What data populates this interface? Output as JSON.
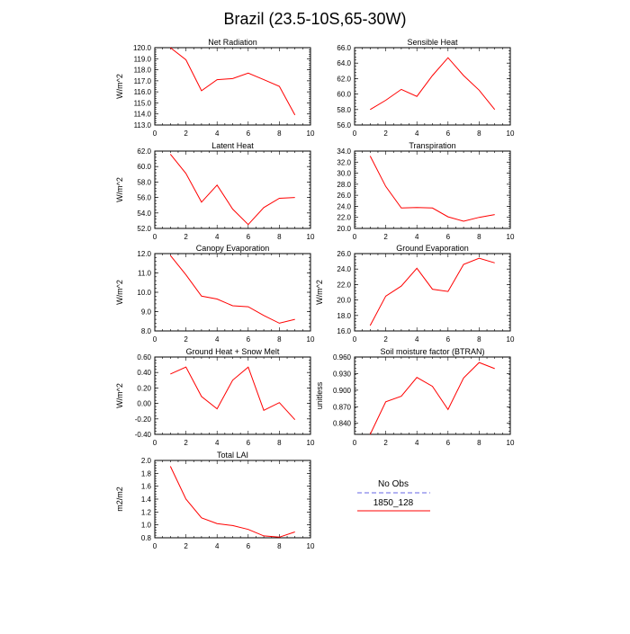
{
  "title": "Brazil (23.5-10S,65-30W)",
  "line_color": "#ff0000",
  "obs_color": "#9999ee",
  "legend": {
    "obs_label": "No Obs",
    "model_label": "1850_128"
  },
  "chart_data": [
    {
      "type": "line",
      "title": "Net Radiation",
      "ylabel": "W/m^2",
      "xlim": [
        0,
        10
      ],
      "ylim": [
        113,
        120
      ],
      "xticks": [
        "0",
        "2",
        "4",
        "6",
        "8",
        "10"
      ],
      "yticks": [
        "113.0",
        "114.0",
        "115.0",
        "116.0",
        "117.0",
        "118.0",
        "119.0",
        "120.0"
      ],
      "x": [
        1,
        2,
        3,
        4,
        5,
        6,
        7,
        8,
        9
      ],
      "series": [
        {
          "name": "1850_128",
          "values": [
            120.0,
            118.9,
            116.1,
            117.1,
            117.2,
            117.7,
            117.1,
            116.5,
            113.9
          ]
        }
      ]
    },
    {
      "type": "line",
      "title": "Sensible Heat",
      "ylabel": "",
      "xlim": [
        0,
        10
      ],
      "ylim": [
        56,
        66
      ],
      "xticks": [
        "0",
        "2",
        "4",
        "6",
        "8",
        "10"
      ],
      "yticks": [
        "56.0",
        "58.0",
        "60.0",
        "62.0",
        "64.0",
        "66.0"
      ],
      "x": [
        1,
        2,
        3,
        4,
        5,
        6,
        7,
        8,
        9
      ],
      "series": [
        {
          "name": "1850_128",
          "values": [
            58.0,
            59.2,
            60.6,
            59.7,
            62.4,
            64.7,
            62.4,
            60.5,
            58.0
          ]
        }
      ]
    },
    {
      "type": "line",
      "title": "Latent Heat",
      "ylabel": "W/m^2",
      "xlim": [
        0,
        10
      ],
      "ylim": [
        52,
        62
      ],
      "xticks": [
        "0",
        "2",
        "4",
        "6",
        "8",
        "10"
      ],
      "yticks": [
        "52.0",
        "54.0",
        "56.0",
        "58.0",
        "60.0",
        "62.0"
      ],
      "x": [
        1,
        2,
        3,
        4,
        5,
        6,
        7,
        8,
        9
      ],
      "series": [
        {
          "name": "1850_128",
          "values": [
            61.6,
            59.1,
            55.4,
            57.6,
            54.5,
            52.5,
            54.7,
            55.9,
            56.0
          ]
        }
      ]
    },
    {
      "type": "line",
      "title": "Transpiration",
      "ylabel": "",
      "xlim": [
        0,
        10
      ],
      "ylim": [
        20,
        34
      ],
      "xticks": [
        "0",
        "2",
        "4",
        "6",
        "8",
        "10"
      ],
      "yticks": [
        "20.0",
        "22.0",
        "24.0",
        "26.0",
        "28.0",
        "30.0",
        "32.0",
        "34.0"
      ],
      "x": [
        1,
        2,
        3,
        4,
        5,
        6,
        7,
        8,
        9
      ],
      "series": [
        {
          "name": "1850_128",
          "values": [
            33.1,
            27.6,
            23.7,
            23.8,
            23.7,
            22.1,
            21.3,
            22.0,
            22.5
          ]
        }
      ]
    },
    {
      "type": "line",
      "title": "Canopy Evaporation",
      "ylabel": "W/m^2",
      "xlim": [
        0,
        10
      ],
      "ylim": [
        8,
        12
      ],
      "xticks": [
        "0",
        "2",
        "4",
        "6",
        "8",
        "10"
      ],
      "yticks": [
        "8.0",
        "9.0",
        "10.0",
        "11.0",
        "12.0"
      ],
      "x": [
        1,
        2,
        3,
        4,
        5,
        6,
        7,
        8,
        9
      ],
      "series": [
        {
          "name": "1850_128",
          "values": [
            11.9,
            10.9,
            9.8,
            9.65,
            9.3,
            9.25,
            8.8,
            8.4,
            8.6
          ]
        }
      ]
    },
    {
      "type": "line",
      "title": "Ground Evaporation",
      "ylabel": "W/m^2",
      "xlim": [
        0,
        10
      ],
      "ylim": [
        16,
        26
      ],
      "xticks": [
        "0",
        "2",
        "4",
        "6",
        "8",
        "10"
      ],
      "yticks": [
        "16.0",
        "18.0",
        "20.0",
        "22.0",
        "24.0",
        "26.0"
      ],
      "x": [
        1,
        2,
        3,
        4,
        5,
        6,
        7,
        8,
        9
      ],
      "series": [
        {
          "name": "1850_128",
          "values": [
            16.7,
            20.5,
            21.8,
            24.1,
            21.4,
            21.1,
            24.6,
            25.4,
            24.8
          ]
        }
      ]
    },
    {
      "type": "line",
      "title": "Ground Heat + Snow Melt",
      "ylabel": "W/m^2",
      "xlim": [
        0,
        10
      ],
      "ylim": [
        -0.4,
        0.6
      ],
      "xticks": [
        "0",
        "2",
        "4",
        "6",
        "8",
        "10"
      ],
      "yticks": [
        "-0.40",
        "-0.20",
        "0.00",
        "0.20",
        "0.40",
        "0.60"
      ],
      "x": [
        1,
        2,
        3,
        4,
        5,
        6,
        7,
        8,
        9
      ],
      "series": [
        {
          "name": "1850_128",
          "values": [
            0.38,
            0.47,
            0.09,
            -0.07,
            0.3,
            0.47,
            -0.09,
            0.01,
            -0.21
          ]
        }
      ]
    },
    {
      "type": "line",
      "title": "Soil moisture factor (BTRAN)",
      "ylabel": "unitless",
      "xlim": [
        0,
        10
      ],
      "ylim": [
        0.82,
        0.96
      ],
      "xticks": [
        "0",
        "2",
        "4",
        "6",
        "8",
        "10"
      ],
      "yticks": [
        "0.840",
        "0.870",
        "0.900",
        "0.930",
        "0.960"
      ],
      "x": [
        1,
        2,
        3,
        4,
        5,
        6,
        7,
        8,
        9
      ],
      "series": [
        {
          "name": "1850_128",
          "values": [
            0.82,
            0.879,
            0.889,
            0.923,
            0.907,
            0.865,
            0.922,
            0.95,
            0.939
          ]
        }
      ]
    },
    {
      "type": "line",
      "title": "Total LAI",
      "ylabel": "m2/m2",
      "xlim": [
        0,
        10
      ],
      "ylim": [
        0.8,
        2.0
      ],
      "xticks": [
        "0",
        "2",
        "4",
        "6",
        "8",
        "10"
      ],
      "yticks": [
        "0.8",
        "1.0",
        "1.2",
        "1.4",
        "1.6",
        "1.8",
        "2.0"
      ],
      "x": [
        1,
        2,
        3,
        4,
        5,
        6,
        7,
        8,
        9
      ],
      "series": [
        {
          "name": "1850_128",
          "values": [
            1.91,
            1.4,
            1.11,
            1.02,
            0.99,
            0.93,
            0.83,
            0.81,
            0.89
          ]
        }
      ]
    }
  ]
}
